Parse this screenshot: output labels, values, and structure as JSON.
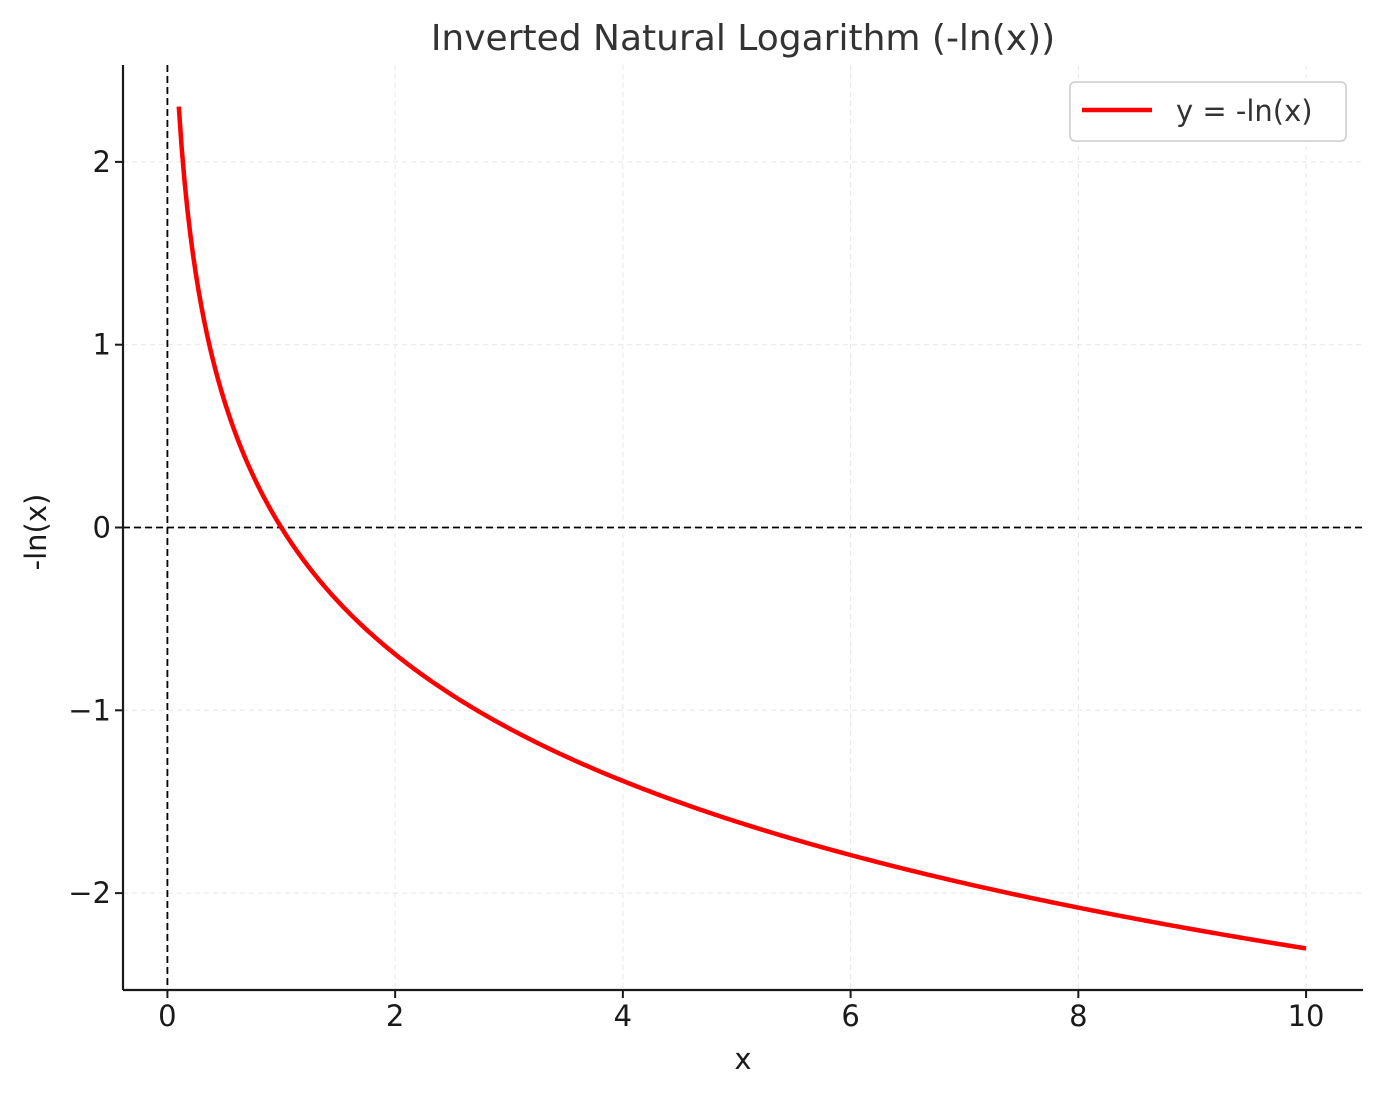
{
  "chart_data": {
    "type": "line",
    "title": "Inverted Natural Logarithm (-ln(x))",
    "xlabel": "x",
    "ylabel": "-ln(x)",
    "xlim": [
      -0.39,
      10.5
    ],
    "ylim": [
      -2.53,
      2.53
    ],
    "x_ticks": [
      0,
      2,
      4,
      6,
      8,
      10
    ],
    "y_ticks": [
      -2,
      -1,
      0,
      1,
      2
    ],
    "x_tick_labels": [
      "0",
      "2",
      "4",
      "6",
      "8",
      "10"
    ],
    "y_tick_labels": [
      "−2",
      "−1",
      "0",
      "1",
      "2"
    ],
    "grid": true,
    "legend_position": "upper right",
    "reference_lines": {
      "horizontal_y": 0,
      "vertical_x": 0,
      "style": "dashed"
    },
    "series": [
      {
        "name": "y = -ln(x)",
        "color": "#ff0000",
        "x_range": [
          0.1,
          10
        ],
        "x": [
          0.1,
          0.15,
          0.2,
          0.25,
          0.3,
          0.4,
          0.5,
          0.6,
          0.7,
          0.8,
          1,
          1.25,
          1.5,
          2,
          2.5,
          3,
          3.5,
          4,
          5,
          6,
          7,
          8,
          9,
          10
        ],
        "y": [
          2.303,
          1.897,
          1.609,
          1.386,
          1.204,
          0.916,
          0.693,
          0.511,
          0.357,
          0.223,
          0,
          -0.223,
          -0.405,
          -0.693,
          -0.916,
          -1.099,
          -1.253,
          -1.386,
          -1.609,
          -1.792,
          -1.946,
          -2.079,
          -2.197,
          -2.303
        ]
      }
    ]
  }
}
